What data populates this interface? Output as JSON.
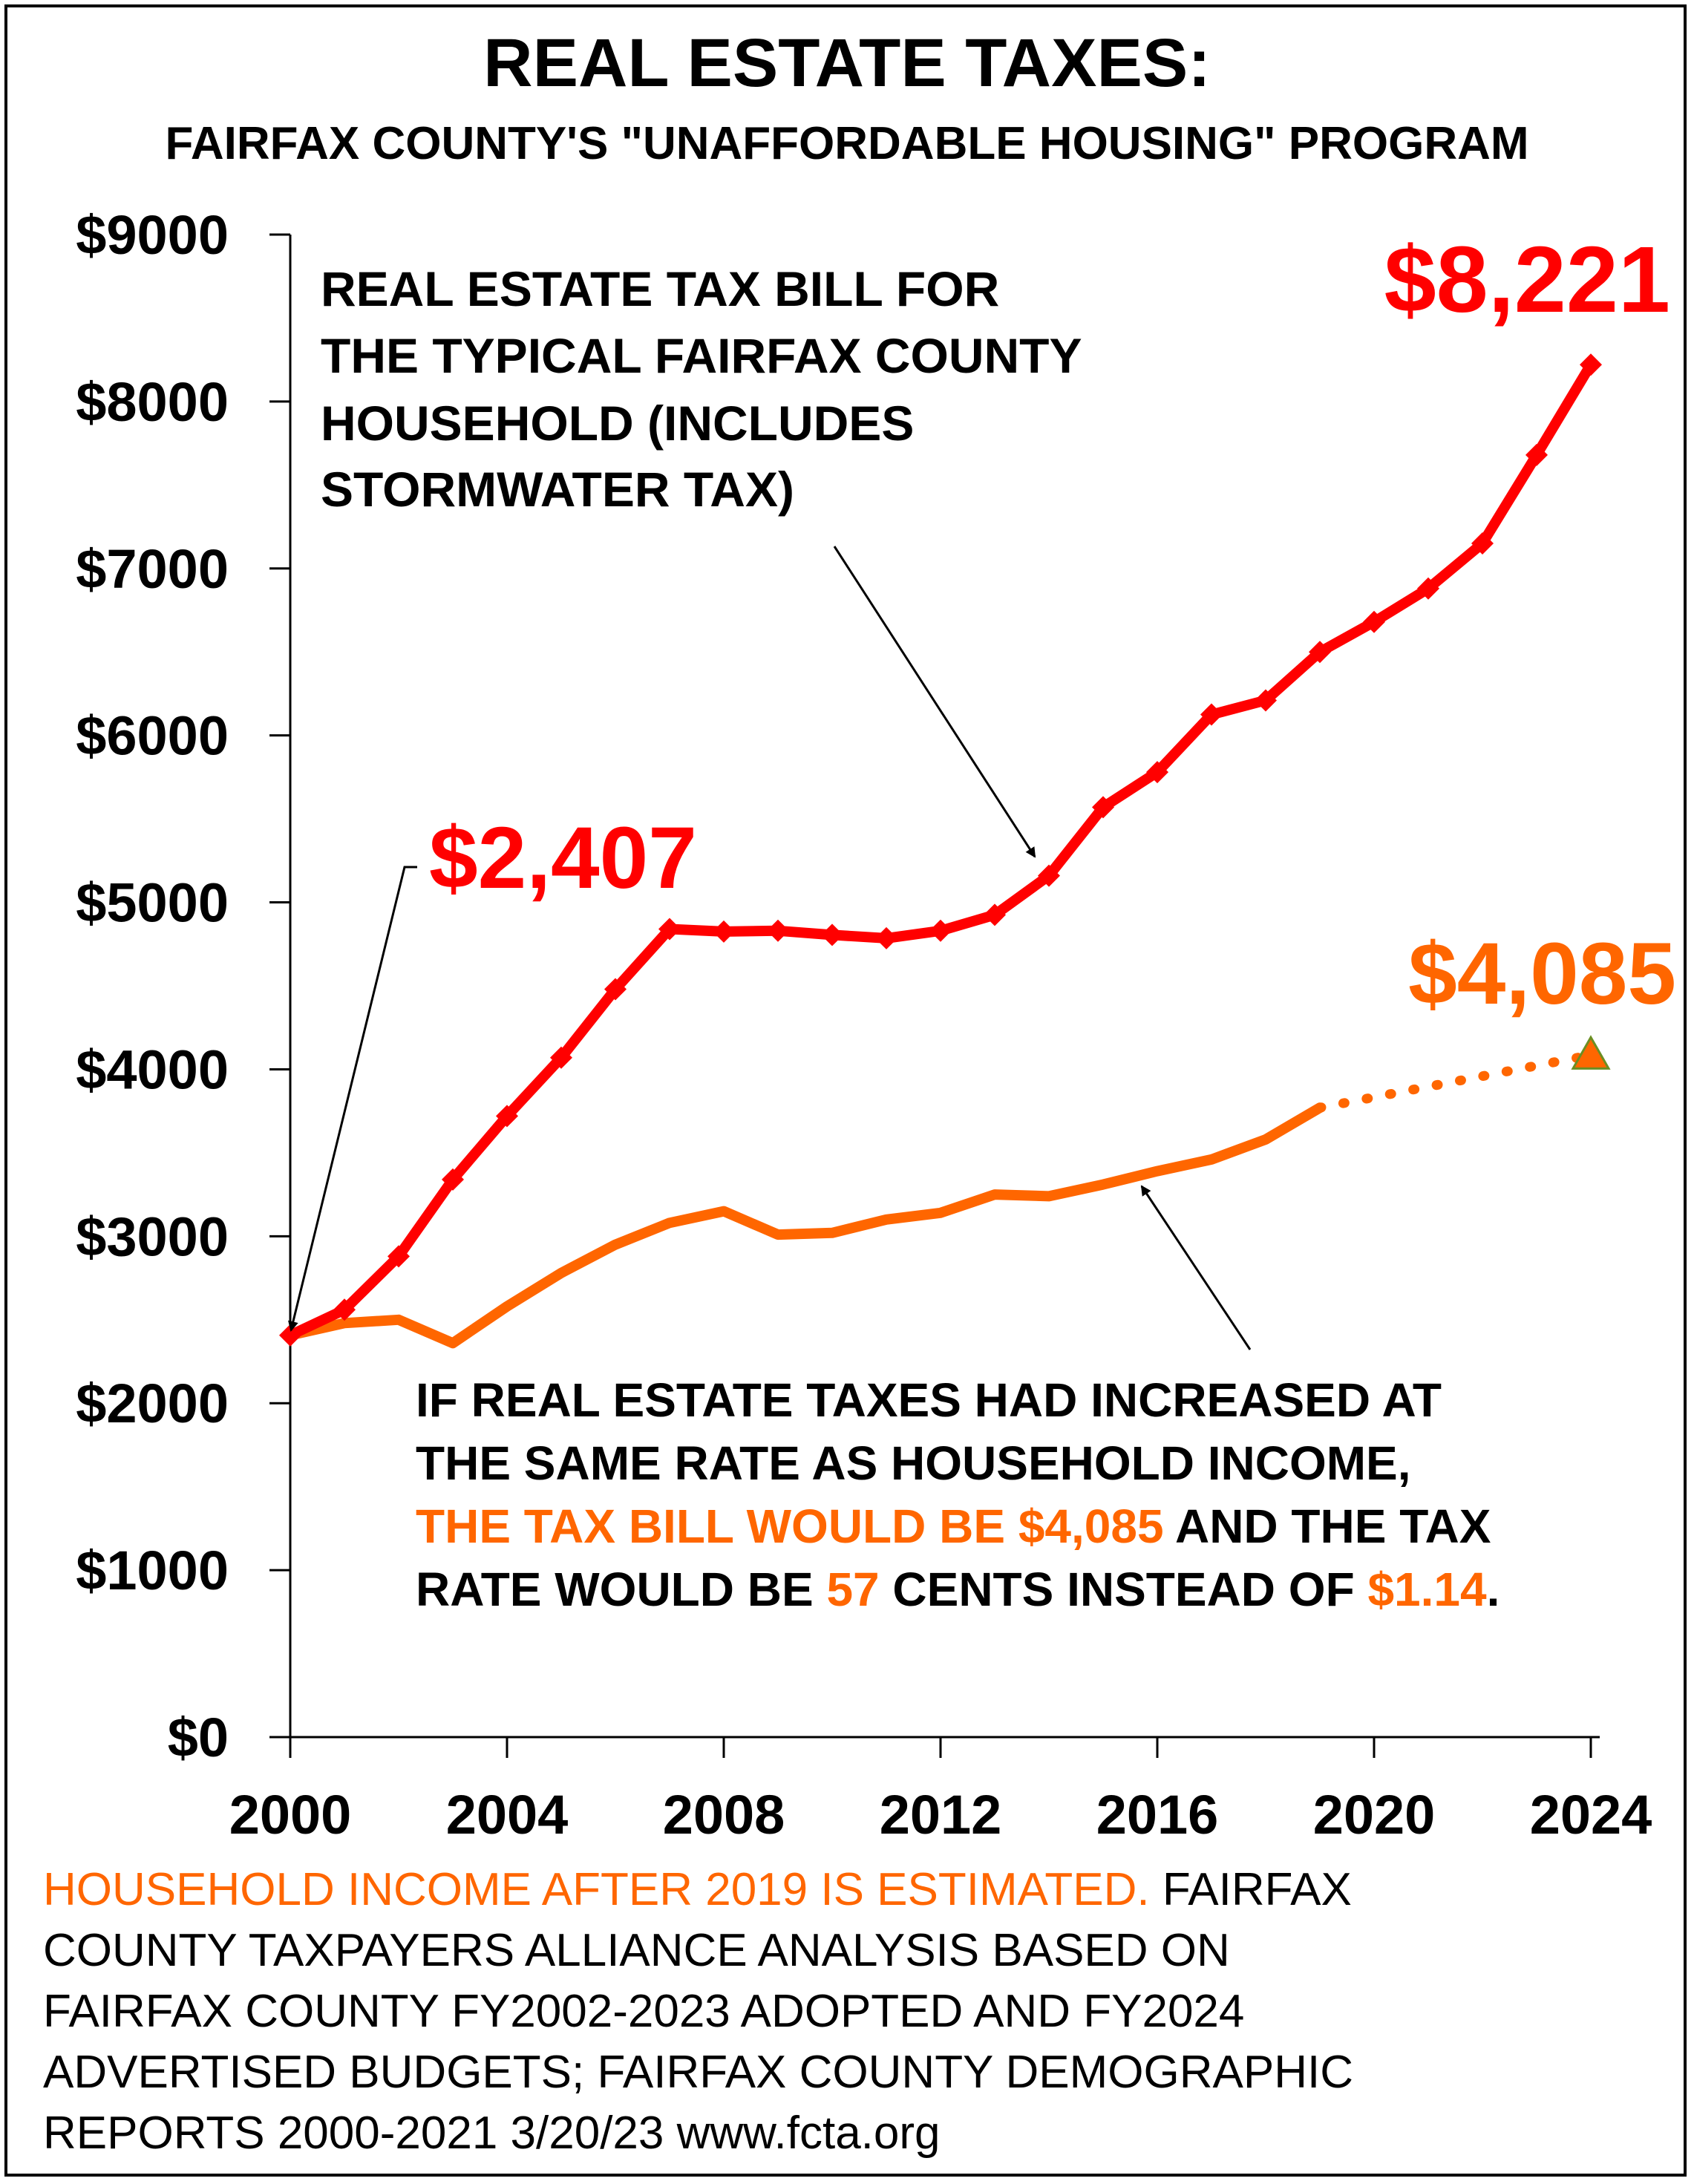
{
  "chart_data": {
    "type": "line",
    "title": "REAL ESTATE TAXES:",
    "subtitle": "FAIRFAX COUNTY'S \"UNAFFORDABLE HOUSING\" PROGRAM",
    "xlabel": "",
    "ylabel": "",
    "xlim": [
      2000,
      2024
    ],
    "ylim": [
      0,
      9000
    ],
    "x_ticks": [
      "2000",
      "2004",
      "2008",
      "2012",
      "2016",
      "2020",
      "2024"
    ],
    "x_tick_values": [
      2000,
      2004,
      2008,
      2012,
      2016,
      2020,
      2024
    ],
    "y_ticks": [
      "$0",
      "$1000",
      "$2000",
      "$3000",
      "$4000",
      "$5000",
      "$6000",
      "$7000",
      "$8000",
      "$9000"
    ],
    "y_tick_values": [
      0,
      1000,
      2000,
      3000,
      4000,
      5000,
      6000,
      7000,
      8000,
      9000
    ],
    "grid": false,
    "series": [
      {
        "color": "#ff0000",
        "marker": "diamond",
        "x": [
          2000,
          2001,
          2002,
          2003,
          2004,
          2005,
          2006,
          2007,
          2008,
          2009,
          2010,
          2011,
          2012,
          2013,
          2014,
          2015,
          2016,
          2017,
          2018,
          2019,
          2020,
          2021,
          2022,
          2023,
          2024
        ],
        "values": [
          2407,
          2560,
          2880,
          3340,
          3720,
          4070,
          4480,
          4840,
          4825,
          4830,
          4805,
          4785,
          4830,
          4925,
          5160,
          5570,
          5780,
          6125,
          6210,
          6500,
          6680,
          6880,
          7150,
          7680,
          8221
        ]
      },
      {
        "color": "#ff6600",
        "marker": "none",
        "x": [
          2000,
          2001,
          2002,
          2003,
          2004,
          2005,
          2006,
          2007,
          2008,
          2009,
          2010,
          2011,
          2012,
          2013,
          2014,
          2015,
          2016,
          2017,
          2018,
          2019
        ],
        "values": [
          2407,
          2480,
          2500,
          2360,
          2580,
          2780,
          2950,
          3080,
          3150,
          3010,
          3020,
          3100,
          3140,
          3250,
          3240,
          3310,
          3390,
          3460,
          3580,
          3770
        ]
      },
      {
        "color": "#ff6600",
        "marker": "triangle",
        "dashed": true,
        "x": [
          2019,
          2024
        ],
        "values": [
          3770,
          4085
        ]
      }
    ],
    "annotations": {
      "start_value": "$2,407",
      "end_value_red": "$8,221",
      "end_value_orange": "$4,085",
      "red_label": [
        "REAL ESTATE TAX BILL FOR",
        "THE TYPICAL FAIRFAX COUNTY",
        "HOUSEHOLD  (INCLUDES",
        "STORMWATER TAX)"
      ],
      "orange_label_line1": "IF REAL ESTATE TAXES HAD INCREASED AT",
      "orange_label_line2": "THE SAME RATE AS HOUSEHOLD INCOME,",
      "orange_label_line3_a": "THE  TAX BILL WOULD BE $4,085",
      "orange_label_line3_b": " AND THE TAX",
      "orange_label_line4_a": "RATE WOULD BE ",
      "orange_label_line4_b": "57",
      "orange_label_line4_c": " CENTS INSTEAD OF ",
      "orange_label_line4_d": "$1.14",
      "orange_label_line4_e": "."
    }
  },
  "footer": {
    "line1_orange": "HOUSEHOLD INCOME AFTER 2019 IS ESTIMATED.",
    "line1_black": "  FAIRFAX",
    "line2": "COUNTY TAXPAYERS ALLIANCE ANALYSIS BASED ON",
    "line3": "FAIRFAX COUNTY FY2002-2023  ADOPTED AND FY2024",
    "line4": "ADVERTISED BUDGETS; FAIRFAX COUNTY DEMOGRAPHIC",
    "line5": "REPORTS 2000-2021     3/20/23   www.fcta.org"
  },
  "colors": {
    "red": "#ff0000",
    "orange": "#ff6600",
    "triangle_outline": "#6b8e23",
    "text": "#000000"
  }
}
